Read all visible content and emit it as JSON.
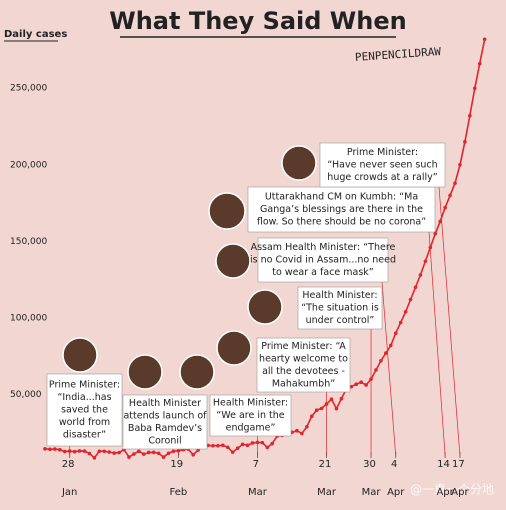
{
  "chart_data": {
    "type": "line",
    "title": "What They Said When",
    "y_label": "Daily cases",
    "signature": "PENPENCILDRAW",
    "watermark": "@一直一个分地",
    "color": "#e0252c",
    "grid": false,
    "categories": [
      null,
      null,
      null,
      null,
      null,
      "28 Jan",
      null,
      null,
      null,
      null,
      null,
      null,
      null,
      null,
      null,
      null,
      null,
      null,
      null,
      null,
      null,
      null,
      null,
      null,
      null,
      null,
      null,
      "19 Feb",
      null,
      null,
      null,
      null,
      null,
      null,
      null,
      null,
      null,
      null,
      null,
      null,
      null,
      null,
      null,
      "7 Mar",
      null,
      null,
      null,
      null,
      null,
      null,
      null,
      null,
      null,
      null,
      null,
      null,
      null,
      "21 Mar",
      null,
      null,
      null,
      null,
      null,
      null,
      null,
      null,
      "30 Mar",
      null,
      null,
      null,
      null,
      "4 Apr",
      null,
      null,
      null,
      null,
      null,
      null,
      null,
      null,
      null,
      "14 Apr",
      null,
      null,
      "17 Apr",
      null,
      null,
      null,
      null,
      null
    ],
    "values": [
      14500,
      14200,
      14300,
      13900,
      12700,
      13000,
      12600,
      13100,
      13000,
      11400,
      8600,
      12900,
      12900,
      12400,
      11700,
      12000,
      14000,
      9100,
      11100,
      12900,
      11000,
      12100,
      12200,
      11600,
      9100,
      11600,
      12900,
      13200,
      13900,
      14300,
      10600,
      13700,
      16700,
      16700,
      16500,
      16500,
      16800,
      15500,
      12300,
      14900,
      17400,
      16800,
      18300,
      18700,
      18500,
      15400,
      17900,
      22800,
      23300,
      24900,
      25300,
      26300,
      24500,
      28900,
      35800,
      39700,
      40900,
      43800,
      46900,
      40700,
      47200,
      53500,
      55100,
      56700,
      58000,
      56200,
      60000,
      66000,
      72000,
      77000,
      82000,
      90000,
      97000,
      104000,
      112000,
      120000,
      128000,
      137000,
      146000,
      155000,
      163000,
      172000,
      180000,
      188000,
      200000,
      215000,
      232000,
      250000,
      266000,
      282000
    ],
    "ylim": [
      0,
      290000
    ],
    "yticks": [
      {
        "value": 50000,
        "label": "50,000"
      },
      {
        "value": 100000,
        "label": "100,000"
      },
      {
        "value": 150000,
        "label": "150,000"
      },
      {
        "value": 200000,
        "label": "200,000"
      },
      {
        "value": 250000,
        "label": "250,000"
      }
    ],
    "annotations": [
      {
        "lines": [
          "Prime Minister:",
          "“India...has",
          "saved the",
          "world from",
          "disaster”"
        ]
      },
      {
        "lines": [
          "Health Minister",
          "attends launch of",
          "Baba Ramdev’s",
          "Coronil"
        ]
      },
      {
        "lines": [
          "Health Minister:",
          "“We are in the",
          "endgame”"
        ]
      },
      {
        "lines": [
          "Prime Minister: “A",
          "hearty welcome to",
          "all the devotees -",
          "Mahakumbh”"
        ]
      },
      {
        "lines": [
          "Health Minister:",
          "“The situation is",
          "under control”"
        ]
      },
      {
        "lines": [
          "Assam Health Minister: “There",
          "is no Covid in Assam...no need",
          "to wear a face mask”"
        ]
      },
      {
        "lines": [
          "Uttarakhand CM on Kumbh: “Ma",
          "Ganga’s blessings are there in the",
          "flow. So there should be no corona”"
        ]
      },
      {
        "lines": [
          "Prime Minister:",
          "“Have never seen such",
          "huge crowds at a rally”"
        ]
      }
    ]
  }
}
